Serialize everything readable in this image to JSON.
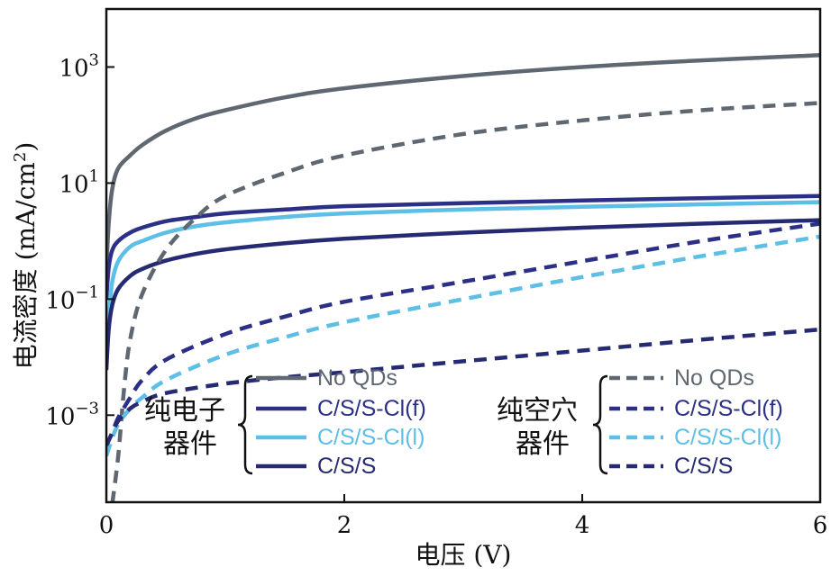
{
  "chart_data": {
    "type": "line",
    "xlabel": "电压 (V)",
    "ylabel_main": "电流密度 (mA/cm",
    "ylabel_sup": "2",
    "ylabel_close": ")",
    "xlim": [
      0,
      6
    ],
    "ylim_log10": [
      -4.5,
      4.0
    ],
    "y_scale": "log",
    "grid": false,
    "x_ticks": [
      0,
      2,
      4,
      6
    ],
    "x_tick_labels": [
      "0",
      "2",
      "4",
      "6"
    ],
    "y_ticks": [
      {
        "exp": 3,
        "base": "10",
        "sup": "3"
      },
      {
        "exp": 1,
        "base": "10",
        "sup": "1"
      },
      {
        "exp": -1,
        "base": "10",
        "sup": "−1"
      },
      {
        "exp": -3,
        "base": "10",
        "sup": "−3"
      }
    ],
    "legend_groups": [
      {
        "label_line1": "纯电子",
        "label_line2": "器件",
        "placement": "bottom-left"
      },
      {
        "label_line1": "纯空穴",
        "label_line2": "器件",
        "placement": "bottom-right"
      }
    ],
    "series": [
      {
        "name": "No QDs",
        "group": 0,
        "color": "#5f6770",
        "dash": "solid",
        "x": [
          0.0,
          0.02,
          0.05,
          0.1,
          0.2,
          0.3,
          0.5,
          0.75,
          1.0,
          1.5,
          2.0,
          3.0,
          4.0,
          5.0,
          6.0
        ],
        "y": [
          0.3,
          2,
          8,
          18,
          30,
          45,
          80,
          130,
          180,
          300,
          430,
          700,
          1000,
          1300,
          1600
        ]
      },
      {
        "name": "C/S/S-Cl(f)",
        "group": 0,
        "color": "#2c2f86",
        "dash": "solid",
        "x": [
          0.0,
          0.02,
          0.05,
          0.1,
          0.2,
          0.3,
          0.5,
          0.75,
          1.0,
          1.5,
          2.0,
          3.0,
          4.0,
          5.0,
          6.0
        ],
        "y": [
          0.1,
          0.35,
          0.7,
          1.0,
          1.4,
          1.7,
          2.2,
          2.6,
          3.0,
          3.5,
          4.0,
          4.5,
          5.0,
          5.5,
          6.0
        ]
      },
      {
        "name": "C/S/S-Cl(l)",
        "group": 0,
        "color": "#5dbfe6",
        "dash": "solid",
        "x": [
          0.0,
          0.02,
          0.05,
          0.1,
          0.2,
          0.3,
          0.5,
          0.75,
          1.0,
          1.5,
          2.0,
          3.0,
          4.0,
          5.0,
          6.0
        ],
        "y": [
          0.01,
          0.05,
          0.2,
          0.45,
          0.8,
          1.0,
          1.4,
          1.8,
          2.1,
          2.6,
          3.0,
          3.5,
          3.9,
          4.3,
          4.7
        ]
      },
      {
        "name": "C/S/S",
        "group": 0,
        "color": "#252a72",
        "dash": "solid",
        "x": [
          0.0,
          0.02,
          0.05,
          0.1,
          0.2,
          0.3,
          0.5,
          0.75,
          1.0,
          1.5,
          2.0,
          3.0,
          4.0,
          5.0,
          6.0
        ],
        "y": [
          0.006,
          0.03,
          0.08,
          0.15,
          0.25,
          0.33,
          0.46,
          0.6,
          0.72,
          0.92,
          1.1,
          1.4,
          1.7,
          2.0,
          2.3
        ]
      },
      {
        "name": "No QDs",
        "group": 1,
        "color": "#5f6770",
        "dash": "dashed",
        "x": [
          0.05,
          0.1,
          0.15,
          0.2,
          0.3,
          0.5,
          0.75,
          1.0,
          1.5,
          2.0,
          3.0,
          4.0,
          5.0,
          6.0
        ],
        "y": [
          3e-05,
          0.0002,
          0.003,
          0.02,
          0.12,
          0.7,
          2.5,
          6,
          15,
          30,
          70,
          120,
          180,
          240
        ]
      },
      {
        "name": "C/S/S-Cl(f)",
        "group": 1,
        "color": "#2c2f86",
        "dash": "dashed",
        "x": [
          0.0,
          0.05,
          0.1,
          0.2,
          0.3,
          0.5,
          1.0,
          1.5,
          2.0,
          3.0,
          4.0,
          5.0,
          6.0
        ],
        "y": [
          0.0003,
          0.0005,
          0.0009,
          0.002,
          0.004,
          0.009,
          0.025,
          0.05,
          0.09,
          0.2,
          0.45,
          1.0,
          2.0
        ]
      },
      {
        "name": "C/S/S-Cl(l)",
        "group": 1,
        "color": "#5dbfe6",
        "dash": "dashed",
        "x": [
          0.0,
          0.05,
          0.1,
          0.2,
          0.3,
          0.5,
          1.0,
          1.5,
          2.0,
          3.0,
          4.0,
          5.0,
          6.0
        ],
        "y": [
          0.0002,
          0.0004,
          0.0007,
          0.0013,
          0.002,
          0.004,
          0.011,
          0.022,
          0.04,
          0.1,
          0.24,
          0.55,
          1.2
        ]
      },
      {
        "name": "C/S/S",
        "group": 1,
        "color": "#252a72",
        "dash": "dashed",
        "x": [
          0.0,
          0.05,
          0.1,
          0.2,
          0.3,
          0.5,
          1.0,
          1.5,
          2.0,
          3.0,
          4.0,
          5.0,
          6.0
        ],
        "y": [
          0.0003,
          0.0005,
          0.0008,
          0.0013,
          0.0017,
          0.0024,
          0.0035,
          0.0045,
          0.0055,
          0.0085,
          0.013,
          0.02,
          0.03
        ]
      }
    ]
  }
}
